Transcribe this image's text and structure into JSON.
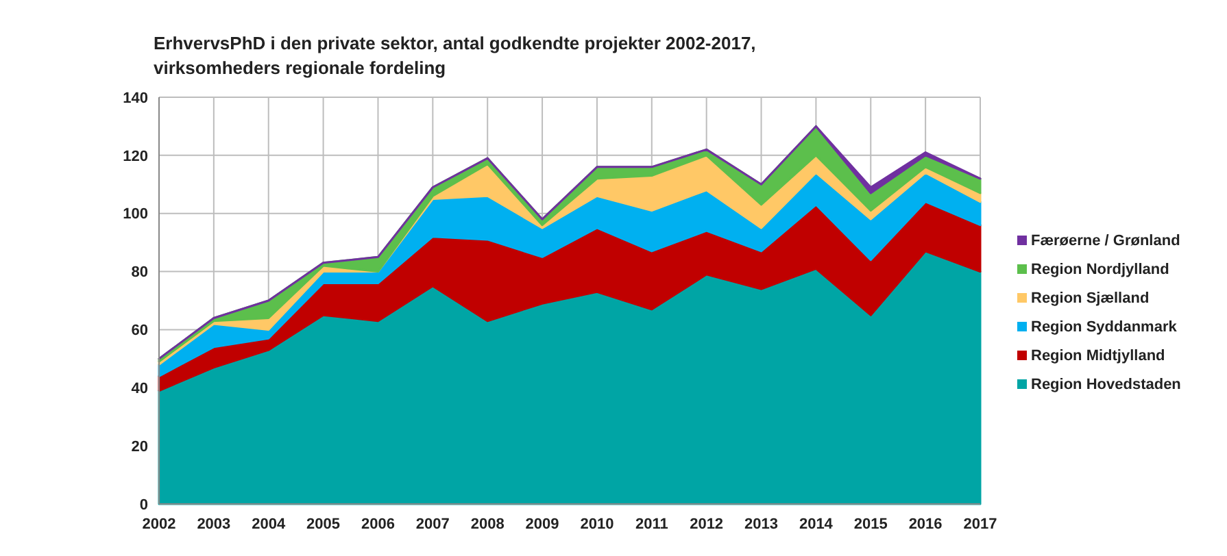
{
  "chart_data": {
    "type": "area",
    "stacked": true,
    "title": "ErhvervsPhD i den private sektor, antal godkendte projekter 2002-2017, virksomheders regionale fordeling",
    "categories": [
      "2002",
      "2003",
      "2004",
      "2005",
      "2006",
      "2007",
      "2008",
      "2009",
      "2010",
      "2011",
      "2012",
      "2013",
      "2014",
      "2015",
      "2016",
      "2017"
    ],
    "series": [
      {
        "name": "Region Hovedstaden",
        "color": "#00a5a5",
        "values": [
          39,
          47,
          53,
          65,
          63,
          75,
          63,
          69,
          73,
          67,
          79,
          74,
          81,
          65,
          87,
          80
        ]
      },
      {
        "name": "Region Midtjylland",
        "color": "#c00000",
        "values": [
          5,
          7,
          4,
          11,
          13,
          17,
          28,
          16,
          22,
          20,
          15,
          13,
          22,
          19,
          17,
          16
        ]
      },
      {
        "name": "Region Syddanmark",
        "color": "#00b0f0",
        "values": [
          4,
          8,
          3,
          4,
          4,
          13,
          15,
          10,
          11,
          14,
          14,
          8,
          11,
          14,
          10,
          8
        ]
      },
      {
        "name": "Region Sjælland",
        "color": "#ffc866",
        "values": [
          1,
          1,
          4,
          2,
          0,
          1,
          11,
          1,
          6,
          12,
          12,
          8,
          6,
          3,
          2,
          3
        ]
      },
      {
        "name": "Region Nordjylland",
        "color": "#5cbf4c",
        "values": [
          1,
          1,
          6,
          1,
          5,
          3,
          2,
          2,
          4,
          3,
          2,
          7,
          10,
          6,
          4,
          5
        ]
      },
      {
        "name": "Færøerne / Grønland",
        "color": "#7030a0",
        "values": [
          0,
          0,
          0,
          0,
          0,
          0,
          0,
          0,
          0,
          0,
          0,
          0,
          0,
          2,
          1,
          0
        ]
      }
    ],
    "ylim": [
      0,
      140
    ],
    "yticks": [
      0,
      20,
      40,
      60,
      80,
      100,
      120,
      140
    ],
    "grid": true,
    "legend": "right"
  }
}
